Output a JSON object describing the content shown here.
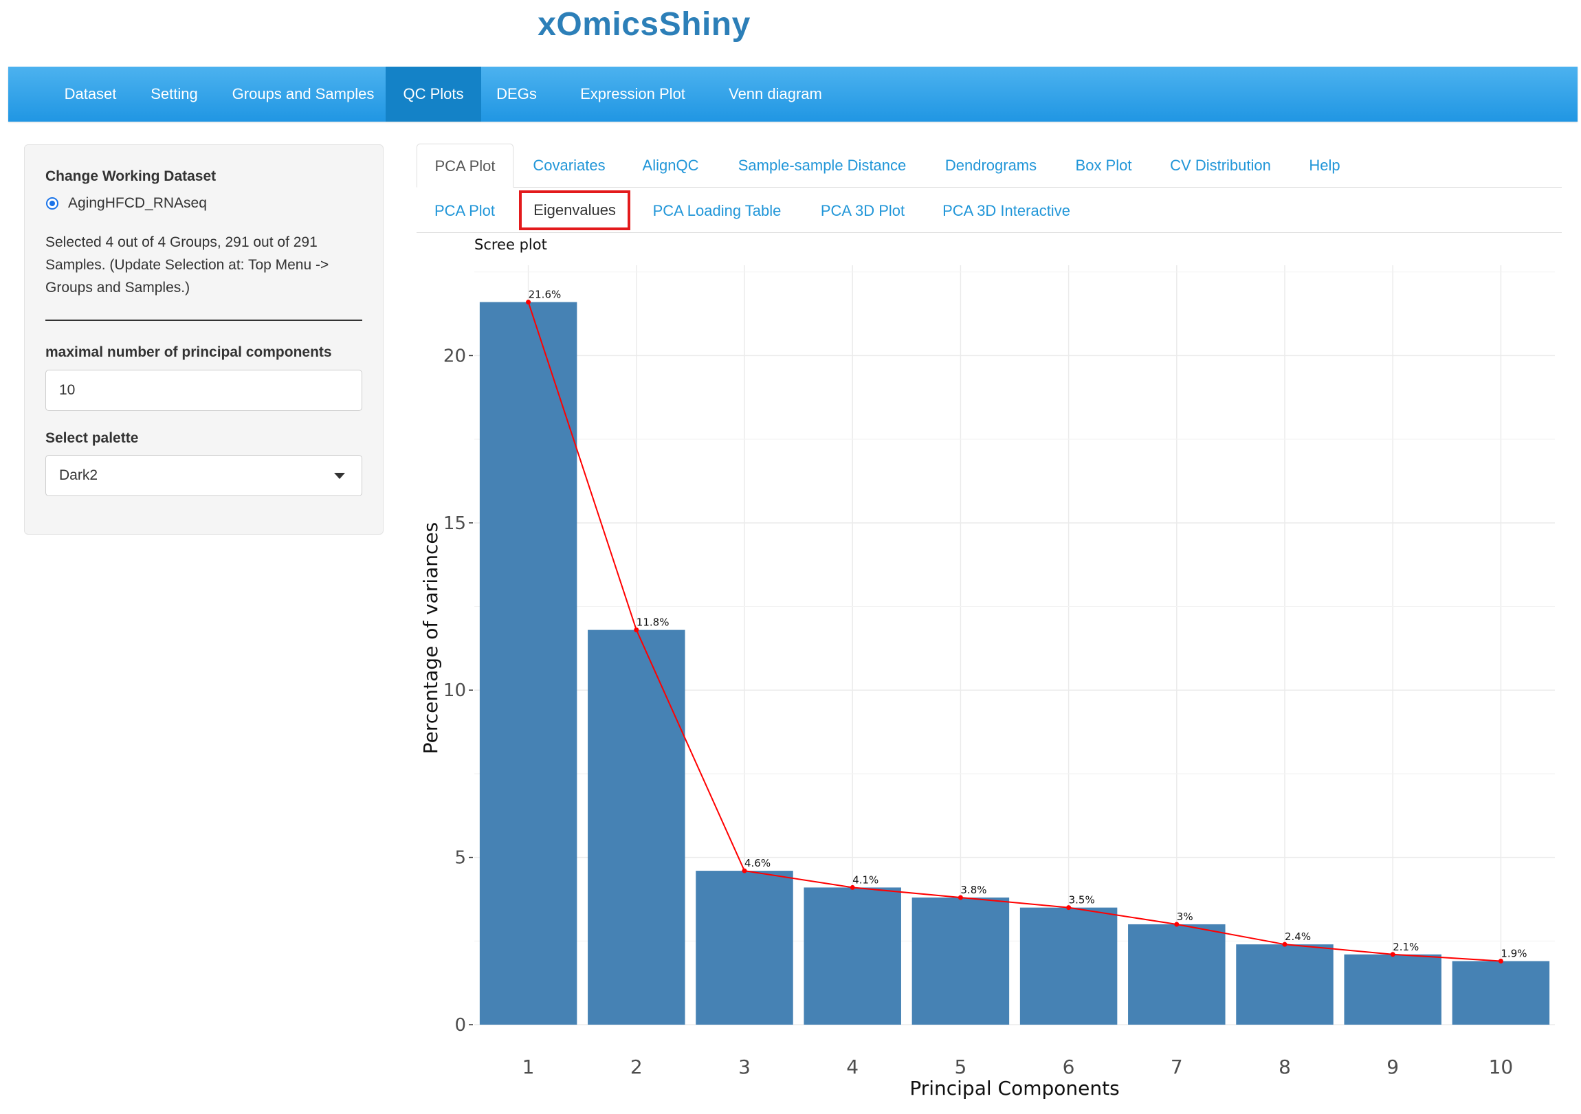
{
  "app": {
    "title": "xOmicsShiny"
  },
  "nav": {
    "items": [
      {
        "label": "Dataset"
      },
      {
        "label": "Setting"
      },
      {
        "label": "Groups and Samples"
      },
      {
        "label": "QC Plots"
      },
      {
        "label": "DEGs"
      },
      {
        "label": "Expression Plot"
      },
      {
        "label": "Venn diagram"
      }
    ],
    "active": "QC Plots"
  },
  "sidebar": {
    "dataset_heading": "Change Working Dataset",
    "dataset_option": "AgingHFCD_RNAseq",
    "selection_line1": "Selected 4 out of 4 Groups, 291 out of 291",
    "selection_line2": "Samples. (Update Selection at: Top Menu ->",
    "selection_line3": "Groups and Samples.)",
    "max_pc_label": "maximal number of principal components",
    "max_pc_value": "10",
    "palette_label": "Select palette",
    "palette_value": "Dark2"
  },
  "tabs": {
    "main": [
      {
        "label": "PCA Plot"
      },
      {
        "label": "Covariates"
      },
      {
        "label": "AlignQC"
      },
      {
        "label": "Sample-sample Distance"
      },
      {
        "label": "Dendrograms"
      },
      {
        "label": "Box Plot"
      },
      {
        "label": "CV Distribution"
      },
      {
        "label": "Help"
      }
    ],
    "sub": [
      {
        "label": "PCA Plot"
      },
      {
        "label": "Eigenvalues"
      },
      {
        "label": "PCA Loading Table"
      },
      {
        "label": "PCA 3D Plot"
      },
      {
        "label": "PCA 3D Interactive"
      }
    ],
    "active_main": "PCA Plot",
    "highlighted_sub": "Eigenvalues",
    "highlight_color": "#e31a1c"
  },
  "chart_data": {
    "type": "bar",
    "title": "Scree plot",
    "xlabel": "Principal Components",
    "ylabel": "Percentage of variances",
    "categories": [
      "1",
      "2",
      "3",
      "4",
      "5",
      "6",
      "7",
      "8",
      "9",
      "10"
    ],
    "values": [
      21.6,
      11.8,
      4.6,
      4.1,
      3.8,
      3.5,
      3.0,
      2.4,
      2.1,
      1.9
    ],
    "data_labels": [
      "21.6%",
      "11.8%",
      "4.6%",
      "4.1%",
      "3.8%",
      "3.5%",
      "3%",
      "2.4%",
      "2.1%",
      "1.9%"
    ],
    "yticks": [
      0,
      5,
      10,
      15,
      20
    ],
    "ylim": [
      0,
      22.7
    ],
    "grid": true,
    "line_overlay": true,
    "bar_color": "#4682b4",
    "line_color": "#ff0000"
  }
}
